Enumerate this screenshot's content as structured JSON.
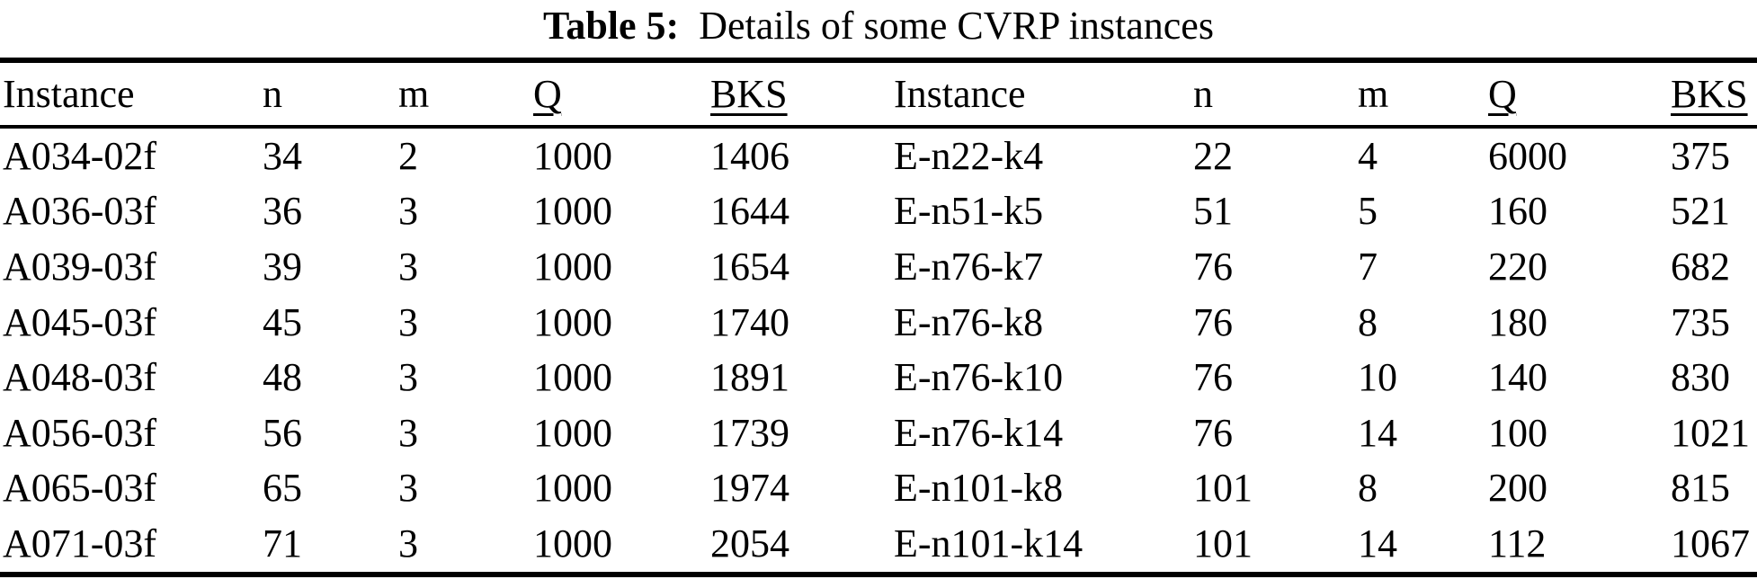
{
  "caption": {
    "label": "Table 5:",
    "text": "Details of some CVRP instances"
  },
  "colors": {
    "text": "#000000",
    "background": "#ffffff",
    "rule": "#000000"
  },
  "table": {
    "column_headers": [
      {
        "key": "instance",
        "label": "Instance",
        "underline": false
      },
      {
        "key": "n",
        "label": "n",
        "underline": false
      },
      {
        "key": "m",
        "label": "m",
        "underline": false
      },
      {
        "key": "q",
        "label": "Q",
        "underline": true
      },
      {
        "key": "bks",
        "label": "BKS",
        "underline": true
      }
    ],
    "left_rows": [
      {
        "instance": "A034-02f",
        "n": "34",
        "m": "2",
        "q": "1000",
        "bks": "1406"
      },
      {
        "instance": "A036-03f",
        "n": "36",
        "m": "3",
        "q": "1000",
        "bks": "1644"
      },
      {
        "instance": "A039-03f",
        "n": "39",
        "m": "3",
        "q": "1000",
        "bks": "1654"
      },
      {
        "instance": "A045-03f",
        "n": "45",
        "m": "3",
        "q": "1000",
        "bks": "1740"
      },
      {
        "instance": "A048-03f",
        "n": "48",
        "m": "3",
        "q": "1000",
        "bks": "1891"
      },
      {
        "instance": "A056-03f",
        "n": "56",
        "m": "3",
        "q": "1000",
        "bks": "1739"
      },
      {
        "instance": "A065-03f",
        "n": "65",
        "m": "3",
        "q": "1000",
        "bks": "1974"
      },
      {
        "instance": "A071-03f",
        "n": "71",
        "m": "3",
        "q": "1000",
        "bks": "2054"
      }
    ],
    "right_rows": [
      {
        "instance": "E-n22-k4",
        "n": "22",
        "m": "4",
        "q": "6000",
        "bks": "375"
      },
      {
        "instance": "E-n51-k5",
        "n": "51",
        "m": "5",
        "q": "160",
        "bks": "521"
      },
      {
        "instance": "E-n76-k7",
        "n": "76",
        "m": "7",
        "q": "220",
        "bks": "682"
      },
      {
        "instance": "E-n76-k8",
        "n": "76",
        "m": "8",
        "q": "180",
        "bks": "735"
      },
      {
        "instance": "E-n76-k10",
        "n": "76",
        "m": "10",
        "q": "140",
        "bks": "830"
      },
      {
        "instance": "E-n76-k14",
        "n": "76",
        "m": "14",
        "q": "100",
        "bks": "1021"
      },
      {
        "instance": "E-n101-k8",
        "n": "101",
        "m": "8",
        "q": "200",
        "bks": "815"
      },
      {
        "instance": "E-n101-k14",
        "n": "101",
        "m": "14",
        "q": "112",
        "bks": "1067"
      }
    ]
  }
}
